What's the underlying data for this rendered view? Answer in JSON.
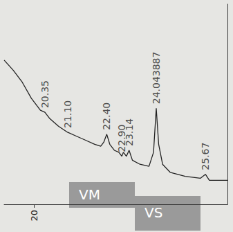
{
  "chart_data": {
    "type": "line",
    "color": "#222222",
    "x": [
      19.0,
      19.3,
      19.6,
      19.9,
      20.2,
      20.35,
      20.5,
      20.8,
      21.1,
      21.4,
      21.7,
      22.0,
      22.2,
      22.3,
      22.4,
      22.5,
      22.65,
      22.8,
      22.9,
      22.95,
      23.05,
      23.14,
      23.25,
      23.5,
      23.8,
      23.95,
      24.04,
      24.12,
      24.25,
      24.5,
      25.0,
      25.5,
      25.67,
      25.8,
      26.4
    ],
    "values": [
      72,
      67,
      61,
      53,
      47,
      46,
      43,
      39,
      36,
      34,
      32,
      30,
      29,
      31,
      35,
      30,
      27,
      26,
      24,
      26,
      24,
      27,
      22,
      20,
      19,
      26,
      48,
      30,
      20,
      16,
      14,
      13,
      15,
      12,
      12
    ],
    "xlim": [
      19.0,
      26.4
    ],
    "xticks": [
      20
    ],
    "ylim": [
      0,
      100
    ],
    "yticks": [],
    "tick_labels": "x",
    "grid": false,
    "annotations": [
      {
        "x": 20.35,
        "text": "20.35"
      },
      {
        "x": 21.1,
        "text": "21.10"
      },
      {
        "x": 22.4,
        "text": "22.40"
      },
      {
        "x": 22.9,
        "text": "22.90"
      },
      {
        "x": 23.14,
        "text": "23.14"
      },
      {
        "x": 24.04,
        "text": "24.043887"
      },
      {
        "x": 25.67,
        "text": "25.67"
      }
    ],
    "box_labels": [
      "VM",
      "VS"
    ]
  }
}
